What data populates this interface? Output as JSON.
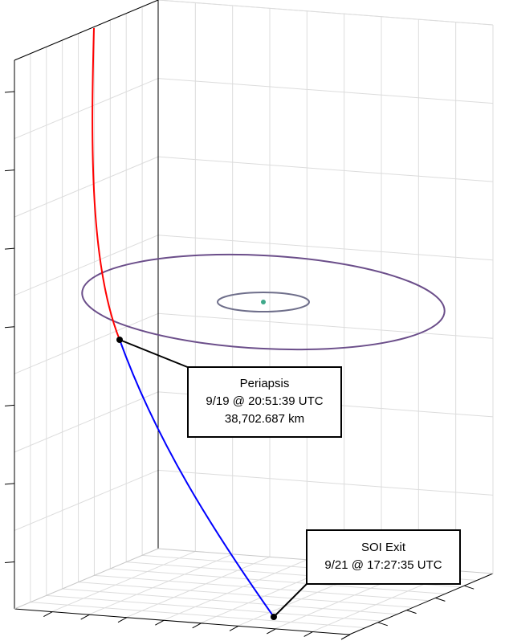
{
  "chart_data": {
    "type": "3d-trajectory",
    "title": "",
    "xlabel": "",
    "ylabel": "",
    "zlabel": "",
    "grid": true,
    "colors": {
      "approach": "#ff0000",
      "departure": "#0000ff",
      "outer_orbit": "#6b4e8a",
      "inner_orbit": "#6e6e8a",
      "body": "#3fa88a",
      "marker": "#000000",
      "grid": "#dcdcdc",
      "axes": "#000000"
    },
    "series": [
      {
        "role": "approach-leg",
        "color": "#ff0000"
      },
      {
        "role": "departure-leg",
        "color": "#0000ff"
      },
      {
        "role": "outer-orbit",
        "color": "#6b4e8a"
      },
      {
        "role": "inner-orbit",
        "color": "#6e6e8a"
      }
    ],
    "events": [
      {
        "name": "Periapsis",
        "date": "9/19 @ 20:51:39 UTC",
        "value": "38,702.687 km"
      },
      {
        "name": "SOI Exit",
        "date": "9/21 @ 17:27:35 UTC"
      }
    ]
  },
  "annotations": {
    "periapsis": {
      "title": "Periapsis",
      "time": "9/19 @ 20:51:39 UTC",
      "altitude": "38,702.687 km"
    },
    "soi_exit": {
      "title": "SOI Exit",
      "time": "9/21 @ 17:27:35 UTC"
    }
  }
}
